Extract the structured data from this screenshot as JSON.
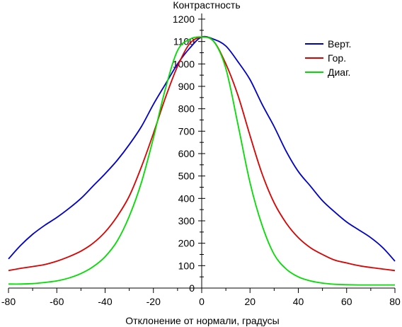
{
  "chart_data": {
    "type": "line",
    "ylabel": "Контрастность",
    "xlabel": "Отклонение от нормали, градусы",
    "xlim": [
      -80,
      80
    ],
    "ylim": [
      0,
      1200
    ],
    "x_ticks": [
      -80,
      -60,
      -40,
      -20,
      0,
      20,
      40,
      60,
      80
    ],
    "y_ticks": [
      0,
      100,
      200,
      300,
      400,
      500,
      600,
      700,
      800,
      900,
      1000,
      1100,
      1200
    ],
    "grid": false,
    "legend_position": "top-right",
    "series": [
      {
        "name": "Верт.",
        "color": "#0000cc",
        "x": [
          -80,
          -75,
          -70,
          -65,
          -60,
          -55,
          -50,
          -45,
          -40,
          -35,
          -30,
          -25,
          -20,
          -15,
          -10,
          -5,
          0,
          5,
          10,
          15,
          20,
          25,
          30,
          35,
          40,
          45,
          50,
          55,
          60,
          65,
          70,
          75,
          80
        ],
        "y": [
          130,
          190,
          240,
          280,
          315,
          355,
          400,
          455,
          510,
          570,
          640,
          720,
          820,
          910,
          1000,
          1070,
          1120,
          1110,
          1080,
          1010,
          930,
          820,
          720,
          610,
          520,
          455,
          390,
          340,
          295,
          260,
          225,
          180,
          120
        ]
      },
      {
        "name": "Гор.",
        "color": "#dd0000",
        "x": [
          -80,
          -75,
          -70,
          -65,
          -60,
          -55,
          -50,
          -45,
          -40,
          -35,
          -30,
          -25,
          -20,
          -15,
          -10,
          -5,
          0,
          5,
          10,
          15,
          20,
          25,
          30,
          35,
          40,
          45,
          50,
          55,
          60,
          65,
          70,
          75,
          80
        ],
        "y": [
          78,
          88,
          96,
          105,
          120,
          140,
          165,
          200,
          250,
          320,
          410,
          540,
          690,
          850,
          990,
          1090,
          1120,
          1100,
          1000,
          860,
          680,
          510,
          380,
          290,
          225,
          180,
          150,
          125,
          112,
          100,
          92,
          85,
          78
        ]
      },
      {
        "name": "Диаг.",
        "color": "#00dd00",
        "x": [
          -80,
          -75,
          -70,
          -65,
          -60,
          -55,
          -50,
          -45,
          -40,
          -35,
          -30,
          -25,
          -20,
          -15,
          -10,
          -5,
          0,
          5,
          10,
          15,
          20,
          25,
          30,
          35,
          40,
          45,
          50,
          55,
          60,
          65,
          70,
          75,
          80
        ],
        "y": [
          18,
          18,
          20,
          25,
          32,
          45,
          65,
          95,
          140,
          210,
          320,
          470,
          670,
          890,
          1060,
          1110,
          1120,
          1100,
          980,
          730,
          470,
          280,
          150,
          85,
          50,
          32,
          22,
          17,
          15,
          14,
          14,
          14,
          14
        ]
      }
    ]
  }
}
